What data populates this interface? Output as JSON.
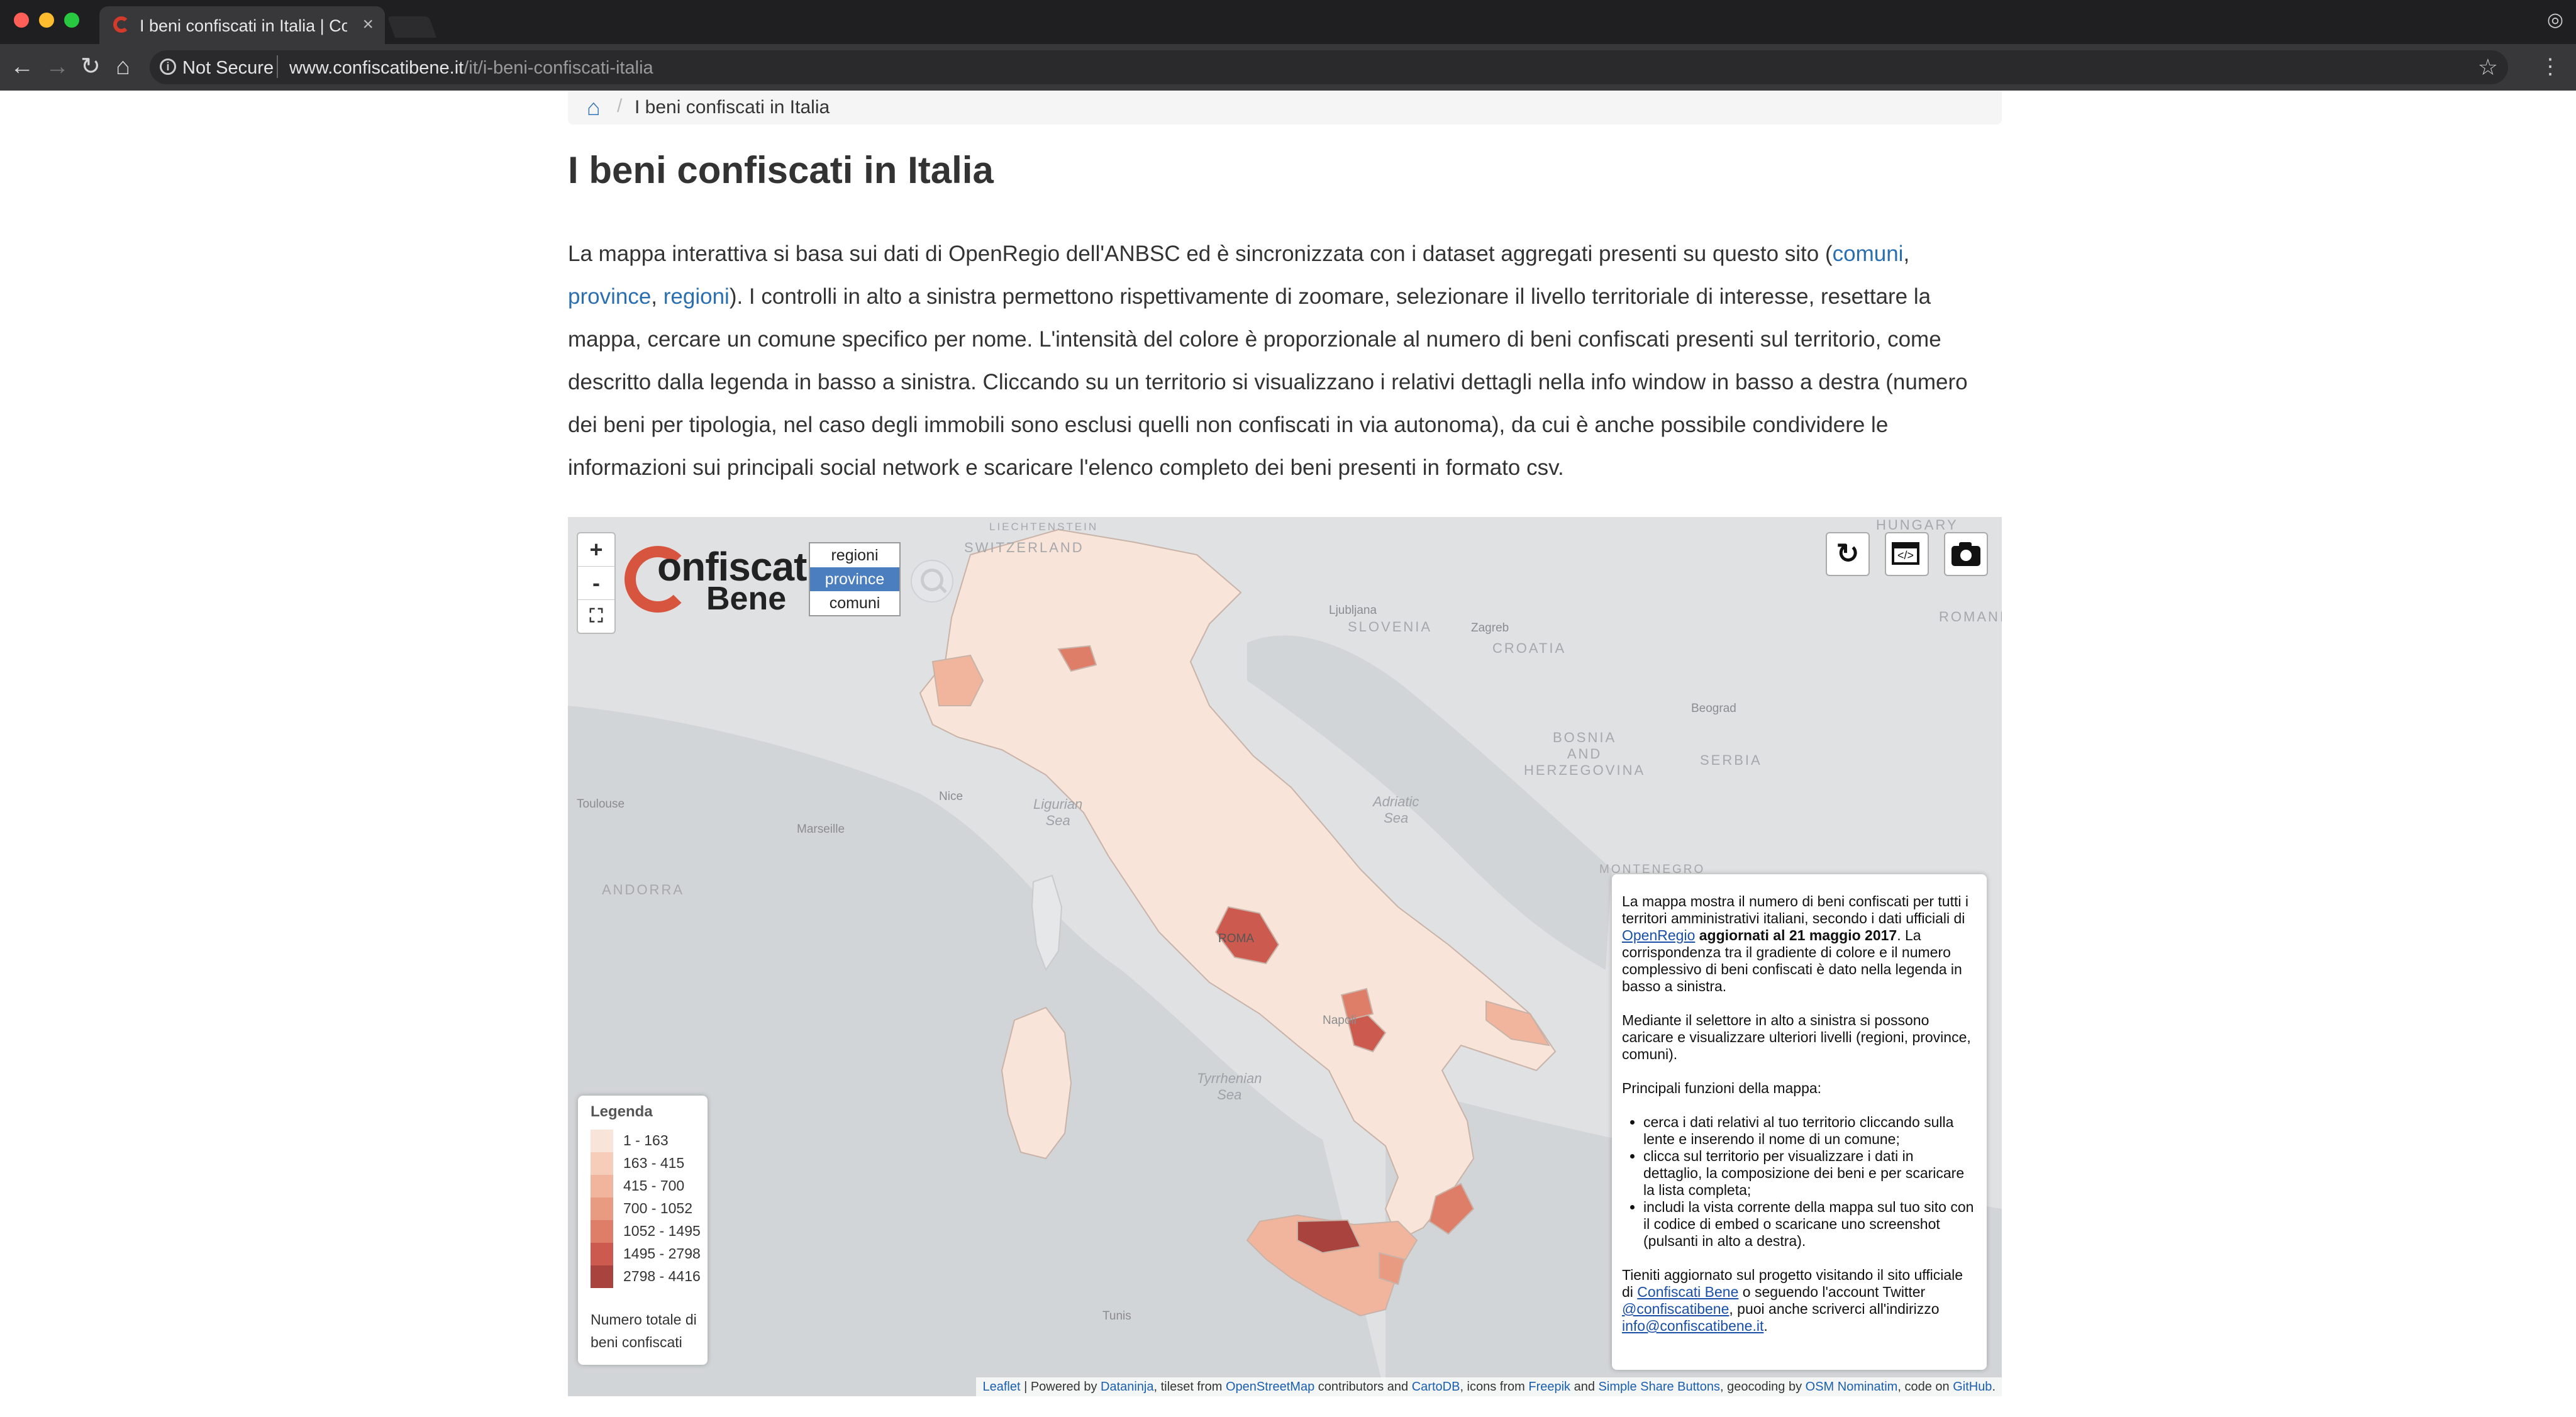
{
  "browser": {
    "tab_title": "I beni confiscati in Italia | Confi",
    "tab_close": "×",
    "not_secure": "Not Secure",
    "url_host": "www.confiscatibene.it",
    "url_path": "/it/i-beni-confiscati-italia",
    "info_glyph": "i",
    "icons": [
      "back-icon",
      "forward-icon",
      "reload-icon",
      "home-icon",
      "info-icon",
      "star-icon",
      "menu-icon",
      "incognito-icon"
    ]
  },
  "breadcrumb": {
    "current": "I beni confiscati in Italia",
    "separator": "/"
  },
  "page": {
    "title": "I beni confiscati in Italia",
    "intro": {
      "p1": "La mappa interattiva si basa sui dati di OpenRegio dell'ANBSC ed è sincronizzata con i dataset aggregati presenti su questo sito (",
      "link_comuni": "comuni",
      "sep1": ", ",
      "link_province": "province",
      "sep2": ", ",
      "link_regioni": "regioni",
      "p2": "). I controlli in alto a sinistra permettono rispettivamente di zoomare, selezionare il livello territoriale di interesse, resettare la mappa, cercare un comune specifico per nome. L'intensità del colore è proporzionale al numero di beni confiscati presenti sul territorio, come descritto dalla legenda in basso a sinistra. Cliccando su un territorio si visualizzano i relativi dettagli nella info window in basso a destra (numero dei beni per tipologia, nel caso degli immobili sono esclusi quelli non confiscati in via autonoma), da cui è anche possibile condividere le informazioni sui principali social network e scaricare l'elenco completo dei beni presenti in formato csv."
    }
  },
  "map": {
    "zoom": {
      "in": "+",
      "out": "-",
      "fit": "⛶"
    },
    "logo": {
      "line1": "onfiscati",
      "line2": "Bene"
    },
    "levels": [
      "regioni",
      "province",
      "comuni"
    ],
    "active_level": "province",
    "geo_labels": {
      "switzerland": "SWITZERLAND",
      "liechtenstein": "LIECHTENSTEIN",
      "hungary": "HUNGARY",
      "slovenia": "SLOVENIA",
      "croatia": "CROATIA",
      "romania": "ROMANIA",
      "bosnia": "BOSNIA\nAND\nHERZEGOVINA",
      "serbia": "SERBIA",
      "andorra": "ANDORRA",
      "montenegro": "MONTENEGRO"
    },
    "city_labels": {
      "ljubljana": "Ljubljana",
      "zagreb": "Zagreb",
      "beograd": "Beograd",
      "toulouse": "Toulouse",
      "nice": "Nice",
      "marseille": "Marseille",
      "roma": "ROMA",
      "napoli": "Napoli",
      "tunis": "Tunis"
    },
    "sea_labels": {
      "ligurian": "Ligurian\nSea",
      "adriatic": "Adriatic\nSea",
      "tyrrhenian": "Tyrrhenian\nSea"
    },
    "legend": {
      "title": "Legenda",
      "items": [
        {
          "label": "1 - 163",
          "color": "#f8e4d8"
        },
        {
          "label": "163 - 415",
          "color": "#f5cdb8"
        },
        {
          "label": "415 - 700",
          "color": "#f0b59c"
        },
        {
          "label": "700 - 1052",
          "color": "#e99b82"
        },
        {
          "label": "1052 - 1495",
          "color": "#df7e68"
        },
        {
          "label": "1495 - 2798",
          "color": "#cc5a4e"
        },
        {
          "label": "2798 - 4416",
          "color": "#a8433d"
        }
      ],
      "footer": "Numero totale di beni confiscati"
    },
    "infobox": {
      "p1_a": "La mappa mostra il numero di beni confiscati per tutti i territori amministrativi italiani, secondo i dati ufficiali di ",
      "p1_link": "OpenRegio",
      "p1_bold": " aggiornati al 21 maggio 2017",
      "p1_b": ". La corrispondenza tra il gradiente di colore e il numero complessivo di beni confiscati è dato nella legenda in basso a sinistra.",
      "p2": "Mediante il selettore in alto a sinistra si possono caricare e visualizzare ulteriori livelli (regioni, province, comuni).",
      "p3": "Principali funzioni della mappa:",
      "bullets": [
        "cerca i dati relativi al tuo territorio cliccando sulla lente e inserendo il nome di un comune;",
        "clicca sul territorio per visualizzare i dati in dettaglio, la composizione dei beni e per scaricare la lista completa;",
        "includi la vista corrente della mappa sul tuo sito con il codice di embed o scaricane uno screenshot (pulsanti in alto a destra)."
      ],
      "p4_a": "Tieniti aggiornato sul progetto visitando il sito ufficiale di ",
      "p4_link1": "Confiscati Bene",
      "p4_b": " o seguendo l'account Twitter ",
      "p4_link2": "@confiscatibene",
      "p4_c": ", puoi anche scriverci all'indirizzo ",
      "p4_link3": "info@confiscatibene.it",
      "p4_d": "."
    },
    "attribution": {
      "leaflet": "Leaflet",
      "t1": " | Powered by ",
      "dataninja": "Dataninja",
      "t2": ", tileset from ",
      "osm": "OpenStreetMap",
      "t3": " contributors and ",
      "cartodb": "CartoDB",
      "t4": ", icons from ",
      "freepik": "Freepik",
      "t5": " and ",
      "ssb": "Simple Share Buttons",
      "t6": ", geocoding by ",
      "nominatim": "OSM Nominatim",
      "t7": ", code on ",
      "github": "GitHub",
      "t8": "."
    }
  }
}
